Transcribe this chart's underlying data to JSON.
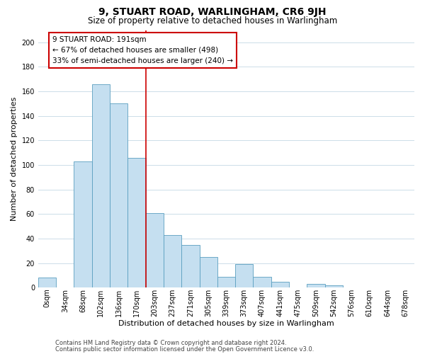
{
  "title": "9, STUART ROAD, WARLINGHAM, CR6 9JH",
  "subtitle": "Size of property relative to detached houses in Warlingham",
  "xlabel": "Distribution of detached houses by size in Warlingham",
  "ylabel": "Number of detached properties",
  "bar_labels": [
    "0sqm",
    "34sqm",
    "68sqm",
    "102sqm",
    "136sqm",
    "170sqm",
    "203sqm",
    "237sqm",
    "271sqm",
    "305sqm",
    "339sqm",
    "373sqm",
    "407sqm",
    "441sqm",
    "475sqm",
    "509sqm",
    "542sqm",
    "576sqm",
    "610sqm",
    "644sqm",
    "678sqm"
  ],
  "bar_heights": [
    8,
    0,
    103,
    166,
    150,
    106,
    61,
    43,
    35,
    25,
    9,
    19,
    9,
    5,
    0,
    3,
    2,
    0,
    0,
    0,
    0
  ],
  "bar_color": "#c5dff0",
  "bar_edge_color": "#5a9fc0",
  "vline_x": 6.0,
  "vline_color": "#cc0000",
  "annotation_title": "9 STUART ROAD: 191sqm",
  "annotation_line1": "← 67% of detached houses are smaller (498)",
  "annotation_line2": "33% of semi-detached houses are larger (240) →",
  "annotation_box_color": "#ffffff",
  "annotation_border_color": "#cc0000",
  "footnote1": "Contains HM Land Registry data © Crown copyright and database right 2024.",
  "footnote2": "Contains public sector information licensed under the Open Government Licence v3.0.",
  "ylim": [
    0,
    210
  ],
  "yticks": [
    0,
    20,
    40,
    60,
    80,
    100,
    120,
    140,
    160,
    180,
    200
  ],
  "title_fontsize": 10,
  "subtitle_fontsize": 8.5,
  "xlabel_fontsize": 8,
  "ylabel_fontsize": 8,
  "annotation_fontsize": 7.5,
  "footnote_fontsize": 6,
  "tick_fontsize": 7,
  "background_color": "#ffffff",
  "grid_color": "#ccdde8"
}
